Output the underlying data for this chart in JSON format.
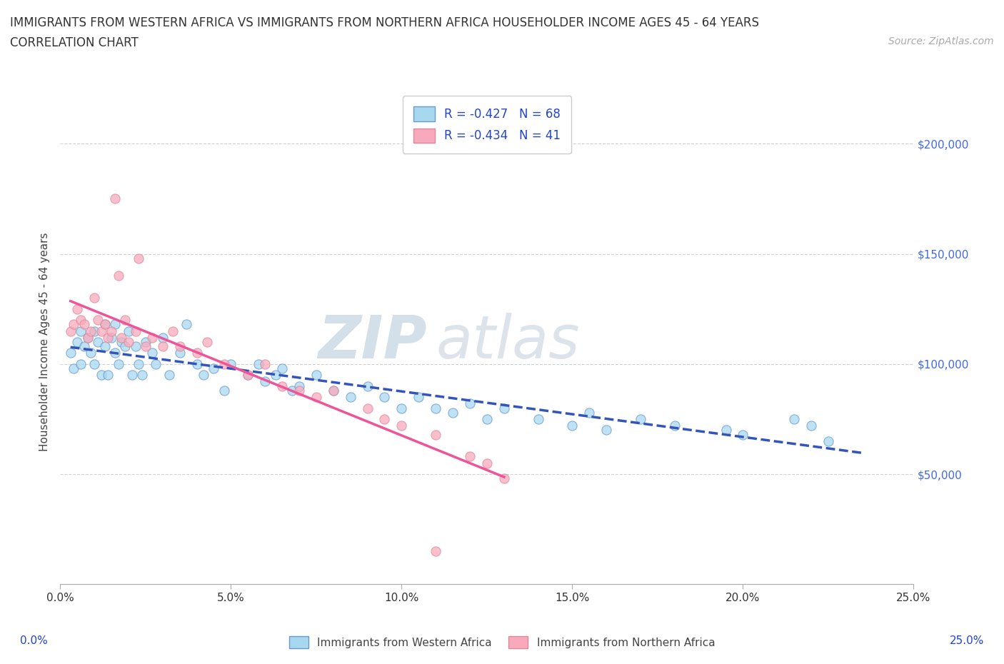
{
  "title_line1": "IMMIGRANTS FROM WESTERN AFRICA VS IMMIGRANTS FROM NORTHERN AFRICA HOUSEHOLDER INCOME AGES 45 - 64 YEARS",
  "title_line2": "CORRELATION CHART",
  "source_text": "Source: ZipAtlas.com",
  "ylabel": "Householder Income Ages 45 - 64 years",
  "xlim": [
    0.0,
    0.25
  ],
  "ylim": [
    0,
    220000
  ],
  "xtick_labels": [
    "0.0%",
    "5.0%",
    "10.0%",
    "15.0%",
    "20.0%",
    "25.0%"
  ],
  "xtick_values": [
    0.0,
    0.05,
    0.1,
    0.15,
    0.2,
    0.25
  ],
  "ytick_labels": [
    "$50,000",
    "$100,000",
    "$150,000",
    "$200,000"
  ],
  "ytick_values": [
    50000,
    100000,
    150000,
    200000
  ],
  "ytick_color": "#4169e1",
  "western_color": "#87CEEB",
  "northern_color": "#FFB6C1",
  "western_line_color": "#3355BB",
  "northern_line_color": "#EE5599",
  "background_color": "#ffffff",
  "gridline_color": "#cccccc",
  "western_x": [
    0.003,
    0.004,
    0.005,
    0.006,
    0.006,
    0.007,
    0.008,
    0.009,
    0.01,
    0.01,
    0.011,
    0.012,
    0.013,
    0.013,
    0.014,
    0.015,
    0.016,
    0.016,
    0.017,
    0.018,
    0.019,
    0.02,
    0.021,
    0.022,
    0.023,
    0.024,
    0.025,
    0.027,
    0.028,
    0.03,
    0.032,
    0.035,
    0.037,
    0.04,
    0.042,
    0.045,
    0.048,
    0.05,
    0.055,
    0.058,
    0.06,
    0.063,
    0.065,
    0.068,
    0.07,
    0.075,
    0.08,
    0.085,
    0.09,
    0.095,
    0.1,
    0.105,
    0.11,
    0.115,
    0.12,
    0.125,
    0.13,
    0.14,
    0.15,
    0.155,
    0.16,
    0.17,
    0.18,
    0.195,
    0.2,
    0.215,
    0.22,
    0.225
  ],
  "western_y": [
    105000,
    98000,
    110000,
    115000,
    100000,
    108000,
    112000,
    105000,
    115000,
    100000,
    110000,
    95000,
    108000,
    118000,
    95000,
    112000,
    105000,
    118000,
    100000,
    110000,
    108000,
    115000,
    95000,
    108000,
    100000,
    95000,
    110000,
    105000,
    100000,
    112000,
    95000,
    105000,
    118000,
    100000,
    95000,
    98000,
    88000,
    100000,
    95000,
    100000,
    92000,
    95000,
    98000,
    88000,
    90000,
    95000,
    88000,
    85000,
    90000,
    85000,
    80000,
    85000,
    80000,
    78000,
    82000,
    75000,
    80000,
    75000,
    72000,
    78000,
    70000,
    75000,
    72000,
    70000,
    68000,
    75000,
    72000,
    65000
  ],
  "northern_x": [
    0.003,
    0.004,
    0.005,
    0.006,
    0.007,
    0.008,
    0.009,
    0.01,
    0.011,
    0.012,
    0.013,
    0.014,
    0.015,
    0.016,
    0.017,
    0.018,
    0.019,
    0.02,
    0.022,
    0.023,
    0.025,
    0.027,
    0.03,
    0.033,
    0.035,
    0.04,
    0.043,
    0.048,
    0.055,
    0.06,
    0.065,
    0.07,
    0.075,
    0.08,
    0.09,
    0.095,
    0.1,
    0.11,
    0.12,
    0.125,
    0.13
  ],
  "northern_y": [
    115000,
    118000,
    125000,
    120000,
    118000,
    112000,
    115000,
    130000,
    120000,
    115000,
    118000,
    112000,
    115000,
    175000,
    140000,
    112000,
    120000,
    110000,
    115000,
    148000,
    108000,
    112000,
    108000,
    115000,
    108000,
    105000,
    110000,
    100000,
    95000,
    100000,
    90000,
    88000,
    85000,
    88000,
    80000,
    75000,
    72000,
    68000,
    58000,
    55000,
    48000
  ],
  "northern_outlier_x": [
    0.11
  ],
  "northern_outlier_y": [
    15000
  ]
}
